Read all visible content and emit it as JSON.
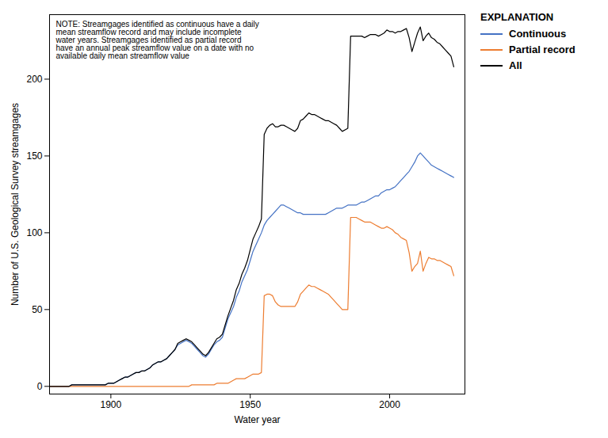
{
  "chart_data": {
    "type": "line",
    "xlabel": "Water year",
    "ylabel": "Number of U.S. Geological Survey streamgages",
    "annotations": [
      "NOTE: Streamgages identified as continuous have a daily\nmean streamflow record and may include incomplete\nwater years. Streamgages identified as partial record\nhave an annual peak streamflow value on a date with no\navailable daily mean streamflow value"
    ],
    "legend_title": "EXPLANATION",
    "legend": "right",
    "grid": false,
    "xlim": [
      1878,
      2027
    ],
    "ylim": [
      -5,
      242
    ],
    "xticks": [
      1900,
      1950,
      2000
    ],
    "yticks": [
      0,
      50,
      100,
      150,
      200
    ],
    "x": [
      1878,
      1879,
      1880,
      1881,
      1882,
      1883,
      1884,
      1885,
      1886,
      1887,
      1888,
      1889,
      1890,
      1891,
      1892,
      1893,
      1894,
      1895,
      1896,
      1897,
      1898,
      1899,
      1900,
      1901,
      1902,
      1903,
      1904,
      1905,
      1906,
      1907,
      1908,
      1909,
      1910,
      1911,
      1912,
      1913,
      1914,
      1915,
      1916,
      1917,
      1918,
      1919,
      1920,
      1921,
      1922,
      1923,
      1924,
      1925,
      1926,
      1927,
      1928,
      1929,
      1930,
      1931,
      1932,
      1933,
      1934,
      1935,
      1936,
      1937,
      1938,
      1939,
      1940,
      1941,
      1942,
      1943,
      1944,
      1945,
      1946,
      1947,
      1948,
      1949,
      1950,
      1951,
      1952,
      1953,
      1954,
      1955,
      1956,
      1957,
      1958,
      1959,
      1960,
      1961,
      1962,
      1963,
      1964,
      1965,
      1966,
      1967,
      1968,
      1969,
      1970,
      1971,
      1972,
      1973,
      1974,
      1975,
      1976,
      1977,
      1978,
      1979,
      1980,
      1981,
      1982,
      1983,
      1984,
      1985,
      1986,
      1987,
      1988,
      1989,
      1990,
      1991,
      1992,
      1993,
      1994,
      1995,
      1996,
      1997,
      1998,
      1999,
      2000,
      2001,
      2002,
      2003,
      2004,
      2005,
      2006,
      2007,
      2008,
      2009,
      2010,
      2011,
      2012,
      2013,
      2014,
      2015,
      2016,
      2017,
      2018,
      2019,
      2020,
      2021,
      2022,
      2023
    ],
    "series": [
      {
        "name": "Continuous",
        "color": "#4472C4",
        "values": [
          0,
          0,
          0,
          0,
          0,
          0,
          0,
          0,
          1,
          1,
          1,
          1,
          1,
          1,
          1,
          1,
          1,
          1,
          1,
          1,
          1,
          2,
          2,
          2,
          3,
          4,
          5,
          6,
          6,
          7,
          8,
          9,
          9,
          10,
          10,
          11,
          12,
          14,
          15,
          16,
          16,
          17,
          18,
          20,
          22,
          24,
          27,
          28,
          29,
          30,
          29,
          28,
          26,
          24,
          22,
          20,
          19,
          21,
          24,
          27,
          29,
          30,
          32,
          38,
          44,
          48,
          52,
          58,
          62,
          68,
          72,
          76,
          82,
          88,
          92,
          96,
          100,
          105,
          108,
          110,
          112,
          114,
          116,
          118,
          118,
          117,
          116,
          115,
          114,
          113,
          113,
          112,
          112,
          112,
          112,
          112,
          112,
          112,
          112,
          112,
          113,
          114,
          115,
          116,
          116,
          116,
          117,
          118,
          118,
          118,
          118,
          119,
          120,
          120,
          121,
          122,
          123,
          124,
          124,
          126,
          127,
          128,
          128,
          129,
          130,
          132,
          134,
          136,
          138,
          140,
          143,
          146,
          150,
          152,
          150,
          148,
          146,
          144,
          143,
          142,
          141,
          140,
          139,
          138,
          137,
          136
        ]
      },
      {
        "name": "Partial record",
        "color": "#ED7D31",
        "values": [
          0,
          0,
          0,
          0,
          0,
          0,
          0,
          0,
          0,
          0,
          0,
          0,
          0,
          0,
          0,
          0,
          0,
          0,
          0,
          0,
          0,
          0,
          0,
          0,
          0,
          0,
          0,
          0,
          0,
          0,
          0,
          0,
          0,
          0,
          0,
          0,
          0,
          0,
          0,
          0,
          0,
          0,
          0,
          0,
          0,
          0,
          0,
          0,
          0,
          0,
          0,
          1,
          1,
          1,
          1,
          1,
          1,
          1,
          1,
          1,
          2,
          2,
          2,
          2,
          2,
          3,
          4,
          5,
          5,
          5,
          5,
          6,
          7,
          8,
          8,
          8,
          9,
          59,
          60,
          60,
          59,
          55,
          53,
          52,
          52,
          52,
          52,
          52,
          52,
          55,
          60,
          62,
          64,
          66,
          65,
          65,
          64,
          63,
          62,
          61,
          60,
          58,
          56,
          54,
          52,
          50,
          50,
          50,
          110,
          110,
          110,
          109,
          108,
          107,
          107,
          107,
          106,
          105,
          104,
          103,
          103,
          104,
          103,
          102,
          100,
          99,
          97,
          96,
          95,
          87,
          75,
          78,
          80,
          88,
          75,
          80,
          84,
          83,
          83,
          82,
          82,
          81,
          80,
          79,
          78,
          72
        ]
      },
      {
        "name": "All",
        "color": "#000000",
        "values": [
          0,
          0,
          0,
          0,
          0,
          0,
          0,
          0,
          1,
          1,
          1,
          1,
          1,
          1,
          1,
          1,
          1,
          1,
          1,
          1,
          1,
          2,
          2,
          2,
          3,
          4,
          5,
          6,
          6,
          7,
          8,
          9,
          9,
          10,
          10,
          11,
          12,
          14,
          15,
          16,
          16,
          17,
          18,
          20,
          22,
          24,
          28,
          29,
          30,
          31,
          30,
          29,
          27,
          25,
          23,
          21,
          20,
          22,
          25,
          28,
          31,
          32,
          34,
          40,
          46,
          51,
          56,
          63,
          67,
          73,
          77,
          82,
          89,
          96,
          100,
          104,
          109,
          164,
          168,
          170,
          171,
          169,
          169,
          170,
          170,
          169,
          168,
          167,
          166,
          168,
          173,
          174,
          176,
          178,
          177,
          177,
          176,
          175,
          174,
          173,
          173,
          172,
          171,
          170,
          168,
          166,
          167,
          168,
          228,
          228,
          228,
          228,
          228,
          227,
          228,
          229,
          229,
          229,
          228,
          229,
          230,
          232,
          231,
          231,
          230,
          231,
          231,
          232,
          233,
          227,
          218,
          224,
          230,
          234,
          225,
          228,
          230,
          227,
          226,
          224,
          223,
          221,
          219,
          217,
          215,
          208
        ]
      }
    ]
  }
}
